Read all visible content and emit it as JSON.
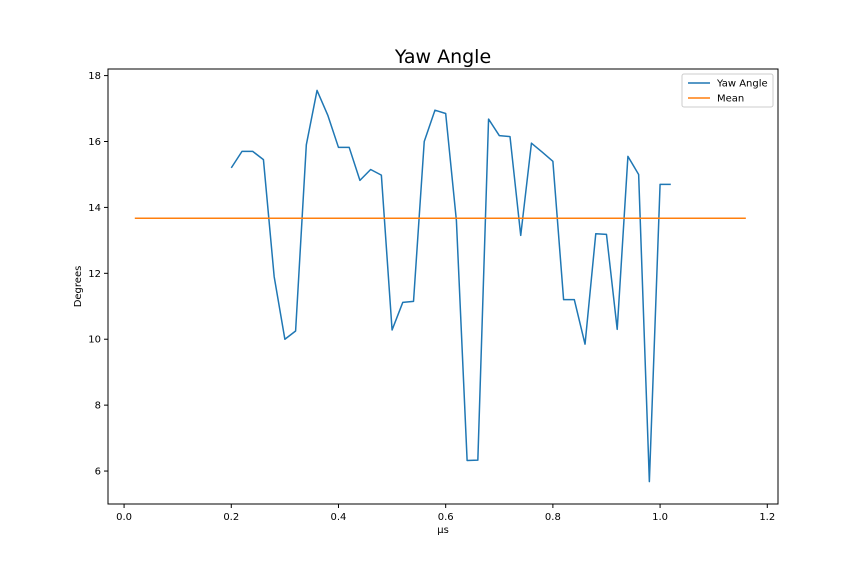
{
  "chart_data": {
    "type": "line",
    "title": "Yaw Angle",
    "xlabel": "µs",
    "ylabel": "Degrees",
    "xlim": [
      -0.03,
      1.22
    ],
    "ylim": [
      5.0,
      18.2
    ],
    "xticks": [
      0.0,
      0.2,
      0.4,
      0.6,
      0.8,
      1.0,
      1.2
    ],
    "xtick_labels": [
      "0.0",
      "0.2",
      "0.4",
      "0.6",
      "0.8",
      "1.0",
      "1.2"
    ],
    "yticks": [
      6,
      8,
      10,
      12,
      14,
      16,
      18
    ],
    "ytick_labels": [
      "6",
      "8",
      "10",
      "12",
      "14",
      "16",
      "18"
    ],
    "grid": false,
    "legend": "top-right",
    "series": [
      {
        "name": "Yaw Angle",
        "color": "#1f77b4",
        "x": [
          0.2,
          0.22,
          0.24,
          0.26,
          0.28,
          0.3,
          0.32,
          0.34,
          0.36,
          0.38,
          0.4,
          0.42,
          0.44,
          0.46,
          0.48,
          0.5,
          0.52,
          0.54,
          0.56,
          0.58,
          0.6,
          0.62,
          0.64,
          0.66,
          0.68,
          0.7,
          0.72,
          0.74,
          0.76,
          0.78,
          0.8,
          0.82,
          0.84,
          0.86,
          0.88,
          0.9,
          0.92,
          0.94,
          0.96,
          0.98,
          1.0,
          1.02
        ],
        "y": [
          15.2,
          15.7,
          15.7,
          15.45,
          11.9,
          10.0,
          10.25,
          15.9,
          17.55,
          16.8,
          15.82,
          15.82,
          14.82,
          15.15,
          14.98,
          10.28,
          11.12,
          11.15,
          16.0,
          16.95,
          16.85,
          13.6,
          6.32,
          6.33,
          16.68,
          16.18,
          16.15,
          13.15,
          15.95,
          15.68,
          15.4,
          11.2,
          11.2,
          9.85,
          13.2,
          13.18,
          10.3,
          15.55,
          15.0,
          5.68,
          14.7,
          14.7
        ]
      },
      {
        "name": "Mean",
        "color": "#ff7f0e",
        "x": [
          0.02,
          1.16
        ],
        "y": [
          13.67,
          13.67
        ]
      }
    ]
  }
}
